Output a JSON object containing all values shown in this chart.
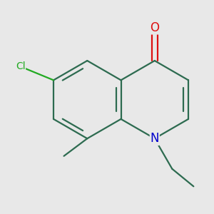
{
  "background_color": "#e8e8e8",
  "bond_color": "#2d6b50",
  "bond_width": 1.6,
  "atom_colors": {
    "O": "#dd1111",
    "N": "#0000cc",
    "Cl": "#22aa22",
    "C": "#2d6b50"
  },
  "font_size": 11,
  "figsize": [
    3.0,
    3.0
  ],
  "dpi": 100,
  "scale": 1.0
}
